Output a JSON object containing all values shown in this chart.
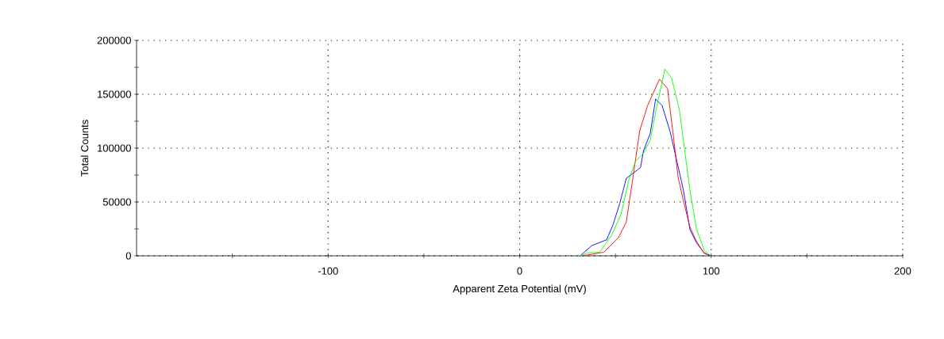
{
  "chart_data": {
    "type": "line",
    "xlabel": "Apparent Zeta Potential (mV)",
    "ylabel": "Total Counts",
    "xlim": [
      -200,
      200
    ],
    "ylim": [
      0,
      200000
    ],
    "xticks": [
      {
        "value": -150,
        "label": null
      },
      -100,
      {
        "value": -50,
        "label": null
      },
      0,
      {
        "value": 50,
        "label": null
      },
      100,
      {
        "value": 150,
        "label": null
      },
      200
    ],
    "yticks": [
      0,
      {
        "value": 25000,
        "label": null
      },
      50000,
      {
        "value": 75000,
        "label": null
      },
      100000,
      {
        "value": 125000,
        "label": null
      },
      150000,
      {
        "value": 175000,
        "label": null
      },
      200000
    ],
    "grid": true,
    "line_style": "solid",
    "series": [
      {
        "color": "#0000ff",
        "x": [
          31.5,
          37.8,
          45.4,
          48.8,
          52.3,
          55.7,
          63.1,
          64.7,
          68.2,
          71.0,
          74.4,
          78.6,
          82.7,
          85.5,
          88.9,
          92.4,
          96.5,
          100
        ],
        "values": [
          0,
          9600,
          14900,
          29100,
          48800,
          72000,
          81900,
          97800,
          113700,
          145600,
          139500,
          115000,
          83100,
          61000,
          24300,
          12000,
          2200,
          0
        ]
      },
      {
        "color": "#ff0000",
        "x": [
          32.9,
          44.0,
          51.6,
          55.7,
          59.2,
          62.7,
          66.8,
          73.0,
          77.2,
          80.0,
          82.7,
          85.5,
          88.9,
          92.4,
          95.9,
          99.3
        ],
        "values": [
          0,
          3400,
          16900,
          31600,
          73300,
          116200,
          139500,
          164000,
          155400,
          115000,
          73300,
          51200,
          26700,
          13200,
          3400,
          0
        ]
      },
      {
        "color": "#00ff00",
        "x": [
          31.5,
          35.7,
          41.9,
          48.1,
          53.0,
          57.1,
          60.6,
          64.7,
          68.2,
          71.7,
          75.8,
          79.3,
          83.4,
          86.2,
          88.9,
          92.4,
          96.5,
          100
        ],
        "values": [
          0,
          2700,
          3400,
          19400,
          39000,
          71100,
          88000,
          95300,
          107600,
          139500,
          173300,
          165200,
          135800,
          97800,
          61000,
          24300,
          4600,
          0
        ]
      }
    ]
  }
}
